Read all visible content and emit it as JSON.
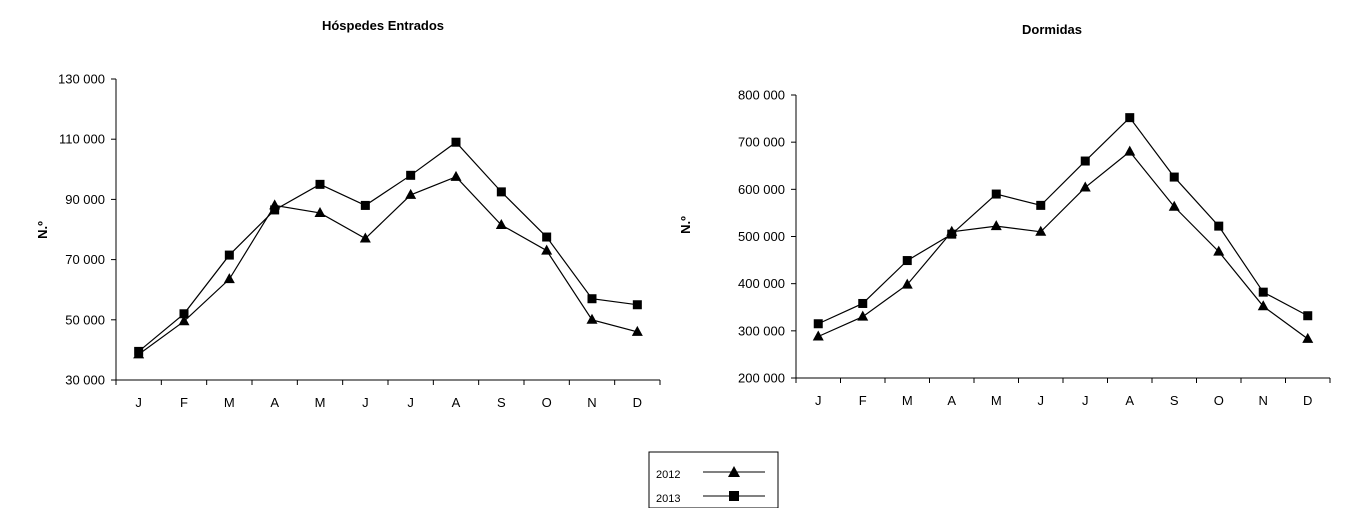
{
  "chart_data": [
    {
      "type": "line",
      "title": "Hóspedes Entrados",
      "ylabel": "N.º",
      "xlabel": "",
      "categories": [
        "J",
        "F",
        "M",
        "A",
        "M",
        "J",
        "J",
        "A",
        "S",
        "O",
        "N",
        "D"
      ],
      "ylim": [
        30000,
        130000
      ],
      "yticks": [
        30000,
        50000,
        70000,
        90000,
        110000,
        130000
      ],
      "ytick_labels": [
        "30 000",
        "50 000",
        "70 000",
        "90 000",
        "110 000",
        "130 000"
      ],
      "grid": false,
      "series": [
        {
          "name": "2012",
          "marker": "triangle",
          "values": [
            38500,
            49500,
            63500,
            88000,
            85500,
            77000,
            91500,
            97500,
            81500,
            73000,
            50000,
            46000
          ]
        },
        {
          "name": "2013",
          "marker": "square",
          "values": [
            39500,
            52000,
            71500,
            86500,
            95000,
            88000,
            98000,
            109000,
            92500,
            77500,
            57000,
            55000
          ]
        }
      ]
    },
    {
      "type": "line",
      "title": "Dormidas",
      "ylabel": "N.º",
      "xlabel": "",
      "categories": [
        "J",
        "F",
        "M",
        "A",
        "M",
        "J",
        "J",
        "A",
        "S",
        "O",
        "N",
        "D"
      ],
      "ylim": [
        200000,
        800000
      ],
      "yticks": [
        200000,
        300000,
        400000,
        500000,
        600000,
        700000,
        800000
      ],
      "ytick_labels": [
        "200 000",
        "300 000",
        "400 000",
        "500 000",
        "600 000",
        "700 000",
        "800 000"
      ],
      "grid": false,
      "series": [
        {
          "name": "2012",
          "marker": "triangle",
          "values": [
            288000,
            330000,
            398000,
            510000,
            522000,
            510000,
            604000,
            680000,
            563000,
            468000,
            352000,
            283000
          ]
        },
        {
          "name": "2013",
          "marker": "square",
          "values": [
            315000,
            358000,
            449000,
            505000,
            590000,
            566000,
            660000,
            752000,
            626000,
            522000,
            382000,
            332000
          ]
        }
      ]
    }
  ],
  "legend": {
    "placement": "bottom-center",
    "entries": [
      {
        "label": "2012",
        "marker": "triangle"
      },
      {
        "label": "2013",
        "marker": "square"
      }
    ]
  },
  "colors": {
    "line": "#000000",
    "background": "#ffffff"
  }
}
